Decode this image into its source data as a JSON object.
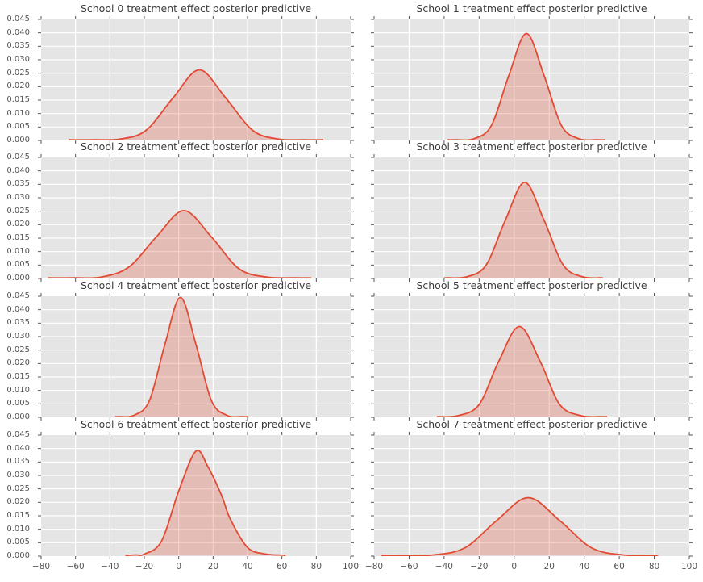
{
  "figure": {
    "background": "#ffffff",
    "kind": "matplotlib ggplot-style 4x2 subplot grid of kernel density estimates"
  },
  "style": {
    "axes_background": "#e5e5e5",
    "grid_color": "#ffffff",
    "line_color": "#e24a33",
    "fill_color": "#e24a33",
    "fill_alpha": 0.26,
    "tick_color": "#555555",
    "tick_label_color": "#555555",
    "title_color": "#3d3d3d"
  },
  "chart_data": {
    "type": "area",
    "title": "",
    "xlabel": "",
    "ylabel": "",
    "grid": true,
    "legend": false,
    "xlim": [
      -80,
      100
    ],
    "ylim": [
      0,
      0.045
    ],
    "x_ticks": [
      -80,
      -60,
      -40,
      -20,
      0,
      20,
      40,
      60,
      80,
      100
    ],
    "y_ticks": [
      0.0,
      0.005,
      0.01,
      0.015,
      0.02,
      0.025,
      0.03,
      0.035,
      0.04,
      0.045
    ],
    "x_tick_labels": [
      "−80",
      "−60",
      "−40",
      "−20",
      "0",
      "20",
      "40",
      "60",
      "80",
      "100"
    ],
    "y_tick_labels": [
      "0.000",
      "0.005",
      "0.010",
      "0.015",
      "0.020",
      "0.025",
      "0.030",
      "0.035",
      "0.040",
      "0.045"
    ],
    "subplots": [
      {
        "school": 0,
        "title": "School 0 treatment effect posterior predictive",
        "peak_x": 12,
        "peak_density": 0.026,
        "span": [
          -64,
          84
        ],
        "x": [
          -49,
          -34,
          -19,
          -3,
          12,
          27,
          43,
          58,
          73
        ],
        "density": [
          0.0,
          0.0003,
          0.0035,
          0.0158,
          0.026,
          0.0158,
          0.0035,
          0.0003,
          0.0
        ]
      },
      {
        "school": 1,
        "title": "School 1 treatment effect posterior predictive",
        "peak_x": 7,
        "peak_density": 0.0395,
        "span": [
          -38,
          52
        ],
        "x": [
          -33,
          -23,
          -13,
          -3,
          7,
          17,
          27,
          37,
          47
        ],
        "density": [
          0.0,
          0.0004,
          0.0053,
          0.024,
          0.0395,
          0.024,
          0.0053,
          0.0004,
          0.0
        ]
      },
      {
        "school": 2,
        "title": "School 2 treatment effect posterior predictive",
        "peak_x": 3,
        "peak_density": 0.025,
        "span": [
          -76,
          77
        ],
        "x": [
          -61,
          -45,
          -29,
          -13,
          3,
          19,
          35,
          51,
          67
        ],
        "density": [
          0.0,
          0.0003,
          0.004,
          0.0152,
          0.025,
          0.0152,
          0.0034,
          0.0003,
          0.0
        ]
      },
      {
        "school": 3,
        "title": "School 3 treatment effect posterior predictive",
        "peak_x": 6,
        "peak_density": 0.0355,
        "span": [
          -40,
          48
        ],
        "x": [
          -38,
          -27,
          -16,
          -5,
          6,
          17,
          28,
          39,
          50
        ],
        "density": [
          0.0,
          0.0004,
          0.0048,
          0.0215,
          0.0355,
          0.0215,
          0.0048,
          0.0004,
          0.0
        ]
      },
      {
        "school": 4,
        "title": "School 4 treatment effect posterior predictive",
        "peak_x": 1,
        "peak_density": 0.0443,
        "span": [
          -37,
          40
        ],
        "x": [
          -35,
          -26,
          -17,
          -8,
          1,
          10,
          19,
          28,
          37
        ],
        "density": [
          0.0,
          0.0005,
          0.006,
          0.0269,
          0.0443,
          0.0269,
          0.006,
          0.0005,
          0.0
        ]
      },
      {
        "school": 5,
        "title": "School 5 treatment effect posterior predictive",
        "peak_x": 3,
        "peak_density": 0.0335,
        "span": [
          -43,
          53
        ],
        "x": [
          -43,
          -32,
          -20,
          -9,
          3,
          15,
          26,
          38,
          49
        ],
        "density": [
          0.0,
          0.0004,
          0.0045,
          0.0203,
          0.0335,
          0.0203,
          0.0045,
          0.0004,
          0.0
        ]
      },
      {
        "school": 6,
        "title": "School 6 treatment effect posterior predictive",
        "peak_x": 10,
        "peak_density": 0.0388,
        "span": [
          -31,
          61
        ],
        "x": [
          -25,
          -20,
          -10,
          0,
          10,
          17,
          25,
          30,
          40,
          50,
          61
        ],
        "density": [
          0.0002,
          0.0005,
          0.0053,
          0.024,
          0.0388,
          0.033,
          0.0222,
          0.0135,
          0.003,
          0.0006,
          0.0001
        ]
      },
      {
        "school": 7,
        "title": "School 7 treatment effect posterior predictive",
        "peak_x": 8,
        "peak_density": 0.0215,
        "span": [
          -76,
          82
        ],
        "x": [
          -64,
          -46,
          -28,
          -10,
          8,
          26,
          44,
          62,
          80
        ],
        "density": [
          0.0,
          0.0002,
          0.0029,
          0.013,
          0.0215,
          0.013,
          0.0029,
          0.0002,
          0.0
        ]
      }
    ]
  }
}
